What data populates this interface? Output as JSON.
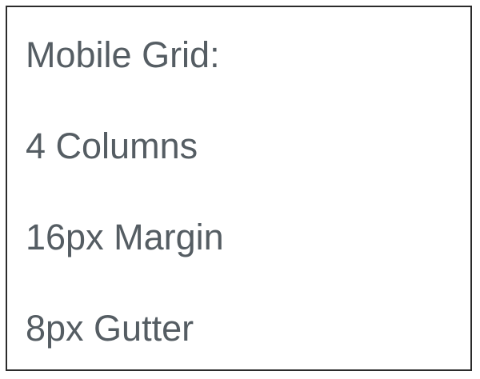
{
  "spec_card": {
    "title": "Mobile Grid:",
    "columns": "4 Columns",
    "margin": "16px Margin",
    "gutter": "8px Gutter"
  },
  "colors": {
    "text": "#555d63",
    "border": "#2b2b2b",
    "background": "#ffffff"
  }
}
